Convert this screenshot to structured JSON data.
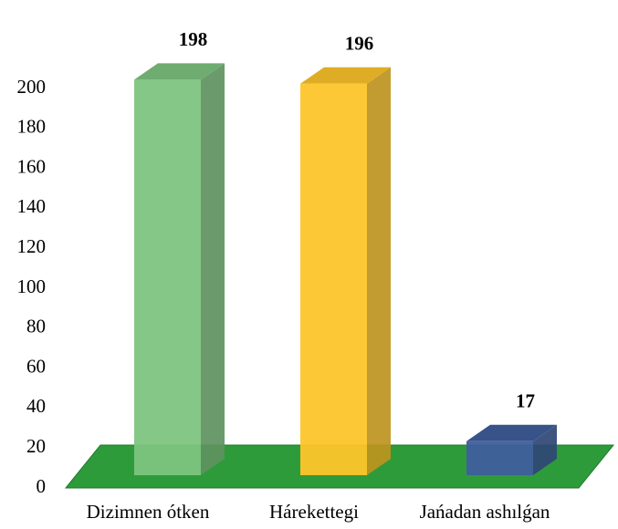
{
  "chart_data": {
    "type": "bar3d",
    "categories": [
      "Dizimnen ótken",
      "Hárekettegi",
      "Jańadan ashılǵan"
    ],
    "values": [
      198,
      196,
      17
    ],
    "colors": [
      "#7dc47f",
      "#fdc52a",
      "#3f5e9c"
    ],
    "ylim": [
      0,
      200
    ],
    "yticks": [
      0,
      20,
      40,
      60,
      80,
      100,
      120,
      140,
      160,
      180,
      200
    ]
  }
}
